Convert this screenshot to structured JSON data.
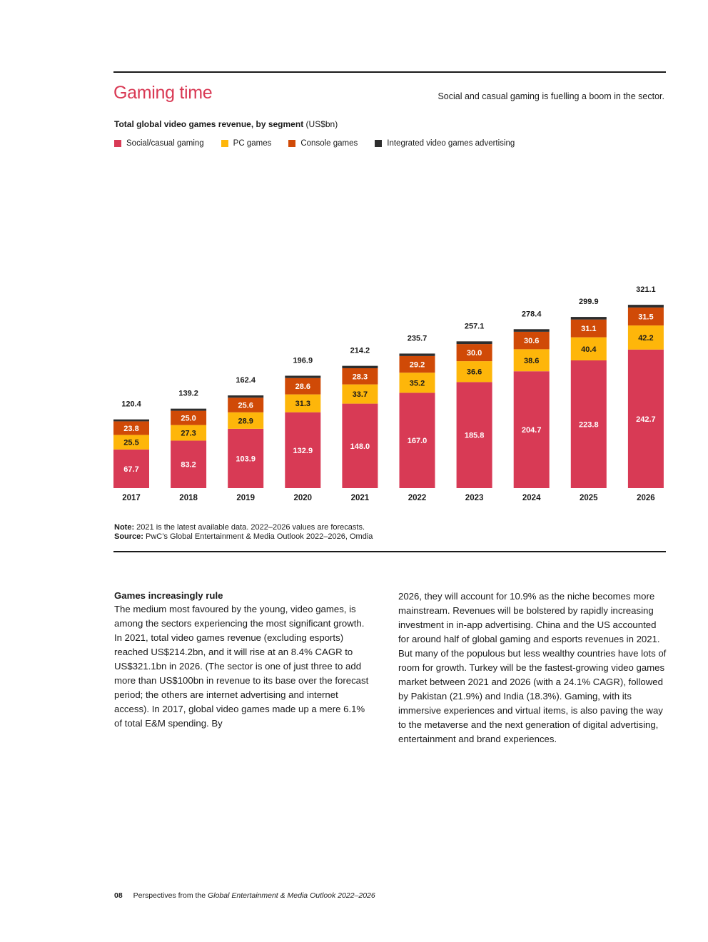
{
  "header": {
    "title": "Gaming time",
    "tagline": "Social and casual gaming is fuelling a boom in the sector."
  },
  "chart_heading": {
    "bold": "Total global video games revenue, by segment",
    "unit": "(US$bn)"
  },
  "colors": {
    "social": "#d83a55",
    "pc": "#feb60a",
    "console": "#d04a07",
    "advertising": "#2d2d2d"
  },
  "chart_data": {
    "type": "bar",
    "stacked": true,
    "legend_position": "top-left",
    "grid": false,
    "categories": [
      "2017",
      "2018",
      "2019",
      "2020",
      "2021",
      "2022",
      "2023",
      "2024",
      "2025",
      "2026"
    ],
    "series": [
      {
        "name": "Social/casual gaming",
        "color_key": "social",
        "values": [
          67.7,
          83.2,
          103.9,
          132.9,
          148.0,
          167.0,
          185.8,
          204.7,
          223.8,
          242.7
        ],
        "labels": [
          "67.7",
          "83.2",
          "103.9",
          "132.9",
          "148.0",
          "167.0",
          "185.8",
          "204.7",
          "223.8",
          "242.7"
        ]
      },
      {
        "name": "PC games",
        "color_key": "pc",
        "values": [
          25.5,
          27.3,
          28.9,
          31.3,
          33.7,
          35.2,
          36.6,
          38.6,
          40.4,
          42.2
        ],
        "labels": [
          "25.5",
          "27.3",
          "28.9",
          "31.3",
          "33.7",
          "35.2",
          "36.6",
          "38.6",
          "40.4",
          "42.2"
        ]
      },
      {
        "name": "Console games",
        "color_key": "console",
        "values": [
          23.8,
          25.0,
          25.6,
          28.6,
          28.3,
          29.2,
          30.0,
          30.6,
          31.1,
          31.5
        ],
        "labels": [
          "23.8",
          "25.0",
          "25.6",
          "28.6",
          "28.3",
          "29.2",
          "30.0",
          "30.6",
          "31.1",
          "31.5"
        ]
      },
      {
        "name": "Integrated video games advertising",
        "color_key": "advertising",
        "values": [
          3.4,
          3.7,
          4.0,
          4.1,
          4.2,
          4.3,
          4.7,
          4.5,
          4.6,
          4.7
        ]
      }
    ],
    "totals": [
      120.4,
      139.2,
      162.4,
      196.9,
      214.2,
      235.7,
      257.1,
      278.4,
      299.9,
      321.1
    ],
    "total_labels": [
      "120.4",
      "139.2",
      "162.4",
      "196.9",
      "214.2",
      "235.7",
      "257.1",
      "278.4",
      "299.9",
      "321.1"
    ],
    "ylim": [
      0,
      340
    ]
  },
  "note": {
    "note_label": "Note:",
    "note_text": "2021 is the latest available data. 2022–2026 values are forecasts.",
    "source_label": "Source:",
    "source_text": "PwC’s Global Entertainment & Media Outlook 2022–2026, Omdia"
  },
  "article": {
    "heading": "Games increasingly rule",
    "left_body": "The medium most favoured by the young, video games, is among the sectors experiencing the most significant growth. In 2021, total video games revenue (excluding esports) reached US$214.2bn, and it will rise at an 8.4% CAGR to US$321.1bn in 2026. (The sector is one of just three to add more than US$100bn in revenue to its base over the forecast period; the others are internet advertising and internet access). In 2017, global video games made up a mere 6.1% of total E&M spending. By",
    "right_body": "2026, they will account for 10.9% as the niche becomes more mainstream. Revenues will be bolstered by rapidly increasing investment in in-app advertising. China and the US accounted for around half of global gaming and esports revenues in 2021. But many of the populous but less wealthy countries have lots of room for growth. Turkey will be the fastest-growing video games market between 2021 and 2026 (with a 24.1% CAGR), followed by Pakistan (21.9%) and India (18.3%). Gaming, with its immersive experiences and virtual items, is also paving the way to the metaverse and the next generation of digital advertising, entertainment and brand experiences."
  },
  "footer": {
    "page_number": "08",
    "prefix": "Perspectives from the ",
    "publication": "Global Entertainment & Media Outlook 2022–2026"
  }
}
